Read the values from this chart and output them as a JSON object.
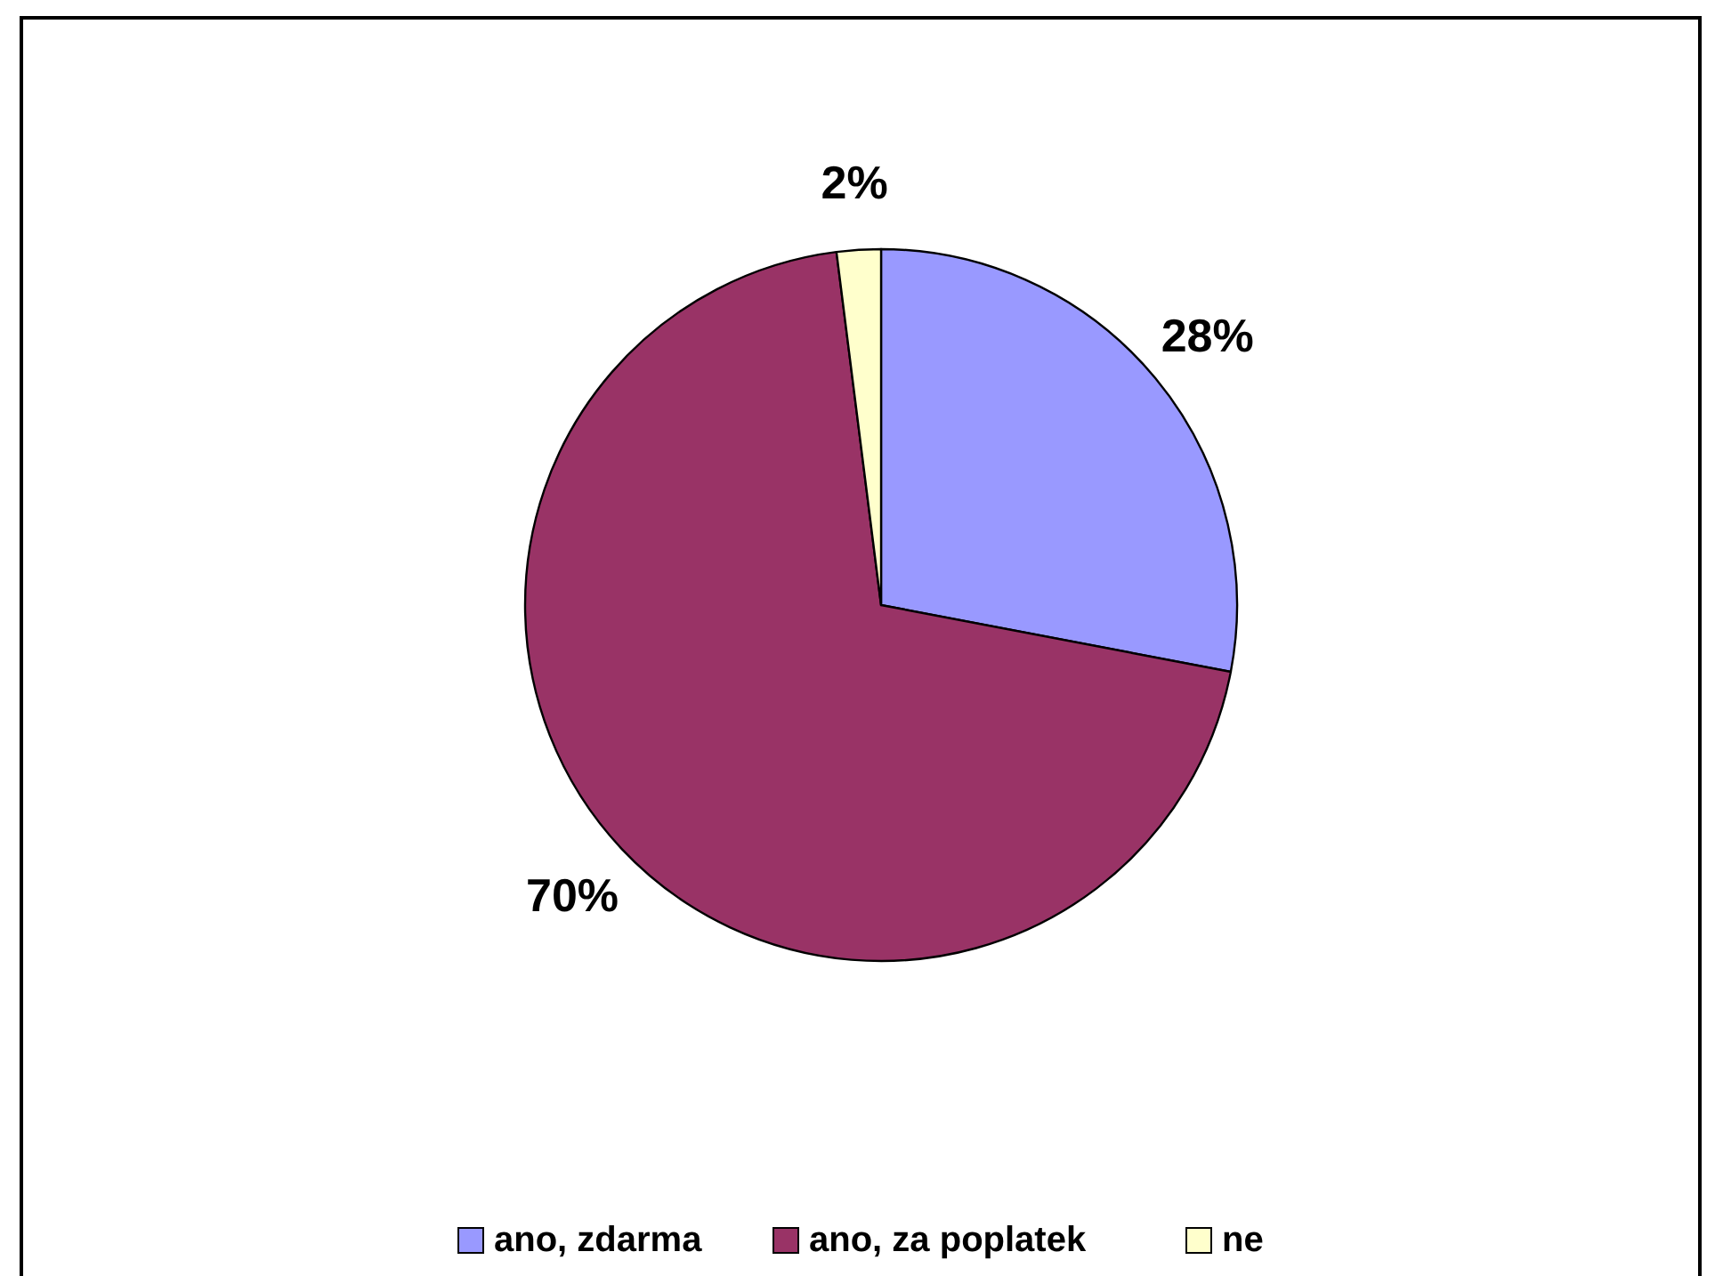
{
  "chart_data": {
    "type": "pie",
    "categories": [
      "ano, zdarma",
      "ano, za poplatek",
      "ne"
    ],
    "values": [
      28,
      70,
      2
    ],
    "colors": [
      "#9999ff",
      "#993366",
      "#ffffcc"
    ],
    "value_labels": [
      "28%",
      "70%",
      "2%"
    ],
    "legend": "bottom"
  }
}
